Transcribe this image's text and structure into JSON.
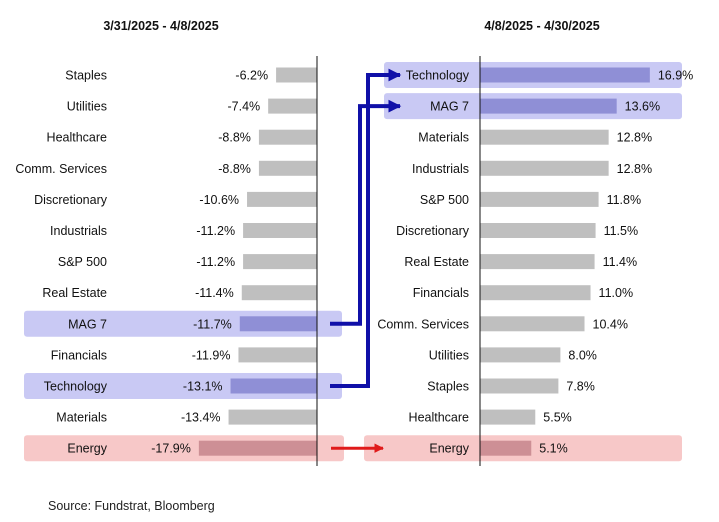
{
  "source": "Source: Fundstrat, Bloomberg",
  "colors": {
    "bar": "#bfbfbf",
    "bar_highlight": "#8f8fd6",
    "bar_energy": "#cd8f95",
    "band_highlight": "#c9c9f4",
    "band_energy": "#f7c8c8",
    "arrow_blue": "#1010a8",
    "arrow_red": "#e01a1a"
  },
  "chart_data": [
    {
      "type": "bar",
      "orientation": "horizontal",
      "title": "3/31/2025 - 4/8/2025",
      "unit": "%",
      "categories": [
        "Staples",
        "Utilities",
        "Healthcare",
        "Comm. Services",
        "Discretionary",
        "Industrials",
        "S&P 500",
        "Real Estate",
        "MAG 7",
        "Financials",
        "Technology",
        "Materials",
        "Energy"
      ],
      "values": [
        -6.2,
        -7.4,
        -8.8,
        -8.8,
        -10.6,
        -11.2,
        -11.2,
        -11.4,
        -11.7,
        -11.9,
        -13.1,
        -13.4,
        -17.9
      ],
      "labels": [
        "-6.2%",
        "-7.4%",
        "-8.8%",
        "-8.8%",
        "-10.6%",
        "-11.2%",
        "-11.2%",
        "-11.4%",
        "-11.7%",
        "-11.9%",
        "-13.1%",
        "-13.4%",
        "-17.9%"
      ],
      "highlight": {
        "MAG 7": "blue",
        "Technology": "blue",
        "Energy": "red"
      }
    },
    {
      "type": "bar",
      "orientation": "horizontal",
      "title": "4/8/2025 - 4/30/2025",
      "unit": "%",
      "categories": [
        "Technology",
        "MAG 7",
        "Materials",
        "Industrials",
        "S&P 500",
        "Discretionary",
        "Real Estate",
        "Financials",
        "Comm. Services",
        "Utilities",
        "Staples",
        "Healthcare",
        "Energy"
      ],
      "values": [
        16.9,
        13.6,
        12.8,
        12.8,
        11.8,
        11.5,
        11.4,
        11.0,
        10.4,
        8.0,
        7.8,
        5.5,
        5.1
      ],
      "labels": [
        "16.9%",
        "13.6%",
        "12.8%",
        "12.8%",
        "11.8%",
        "11.5%",
        "11.4%",
        "11.0%",
        "10.4%",
        "8.0%",
        "7.8%",
        "5.5%",
        "5.1%"
      ],
      "highlight": {
        "Technology": "blue",
        "MAG 7": "blue",
        "Energy": "red"
      }
    }
  ]
}
